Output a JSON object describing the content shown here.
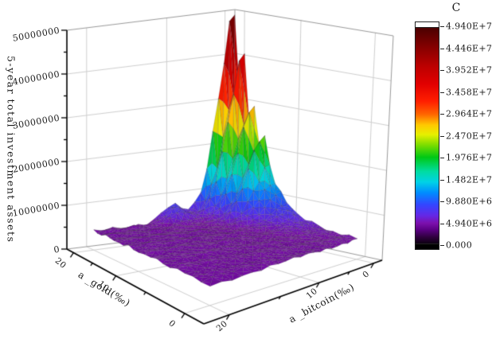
{
  "figure": {
    "background": "#ffffff"
  },
  "z_axis": {
    "title": "5-year total investment assets",
    "tick_labels": [
      "0",
      "10000000",
      "20000000",
      "30000000",
      "40000000",
      "50000000"
    ],
    "range": [
      0,
      50000000
    ]
  },
  "gold_axis": {
    "title": "a _gold(‰)",
    "major_ticks": [
      20,
      10,
      0
    ],
    "minor_ticks": [
      15,
      5
    ],
    "range": [
      -2,
      22
    ]
  },
  "bitcoin_axis": {
    "title": "a _bitcoin(‰)",
    "major_ticks": [
      20,
      10,
      0
    ],
    "minor_ticks": [
      15,
      5
    ],
    "range": [
      -2,
      22
    ]
  },
  "colorbar": {
    "title": "C",
    "labels": [
      "4.940E+7",
      "4.446E+7",
      "3.952E+7",
      "3.458E+7",
      "2.964E+7",
      "2.470E+7",
      "1.976E+7",
      "1.482E+7",
      "9.880E+6",
      "4.940E+6",
      "0.000"
    ],
    "over_color": "#ffffff",
    "under_color": "#000000"
  },
  "chart_data": {
    "type": "surface",
    "xlabel": "a _gold(‰)",
    "ylabel": "a _bitcoin(‰)",
    "zlabel": "5-year total investment assets",
    "x_range": [
      -2,
      22
    ],
    "y_range": [
      -2,
      22
    ],
    "z_range": [
      0,
      50000000
    ],
    "grid": "on",
    "colormap_max": 49400000,
    "colormap": [
      [
        0.0,
        "#0d0012"
      ],
      [
        0.03,
        "#30003f"
      ],
      [
        0.065,
        "#5c0086"
      ],
      [
        0.095,
        "#7c10ae"
      ],
      [
        0.13,
        "#6428e6"
      ],
      [
        0.18,
        "#3346ff"
      ],
      [
        0.235,
        "#008cff"
      ],
      [
        0.285,
        "#00d2e6"
      ],
      [
        0.335,
        "#00dca0"
      ],
      [
        0.4,
        "#00c814"
      ],
      [
        0.455,
        "#78dc00"
      ],
      [
        0.505,
        "#e6f000"
      ],
      [
        0.55,
        "#ffc800"
      ],
      [
        0.6,
        "#ff6400"
      ],
      [
        0.66,
        "#ff1e00"
      ],
      [
        0.74,
        "#e10000"
      ],
      [
        0.82,
        "#bd0000"
      ],
      [
        0.9,
        "#8c0000"
      ],
      [
        1.0,
        "#4b0000"
      ]
    ],
    "surface": {
      "domain": {
        "g": [
          0,
          20
        ],
        "b": [
          0,
          20
        ],
        "step": 1
      },
      "peak": {
        "g": 20,
        "b": 0,
        "z": 49400000
      },
      "ridge_profile_along_b0": {
        "g_from": 0,
        "g_to": 20,
        "z_millions": [
          4.6,
          4.7,
          4.8,
          5.0,
          5.2,
          5.5,
          5.9,
          6.4,
          7.1,
          8.0,
          9.2,
          11.0,
          13.5,
          16.5,
          23.5,
          20.5,
          29.5,
          26.5,
          40.5,
          33.0,
          49.4
        ]
      },
      "b_falloff_sigma": 4.2,
      "secondary_bump": {
        "g": 19.5,
        "b": 10.5,
        "height_millions": 3.6,
        "sigma_g": 2.2,
        "sigma_b": 2.0
      },
      "baseline_millions": 4.4,
      "noise_millions": 0.5
    }
  }
}
